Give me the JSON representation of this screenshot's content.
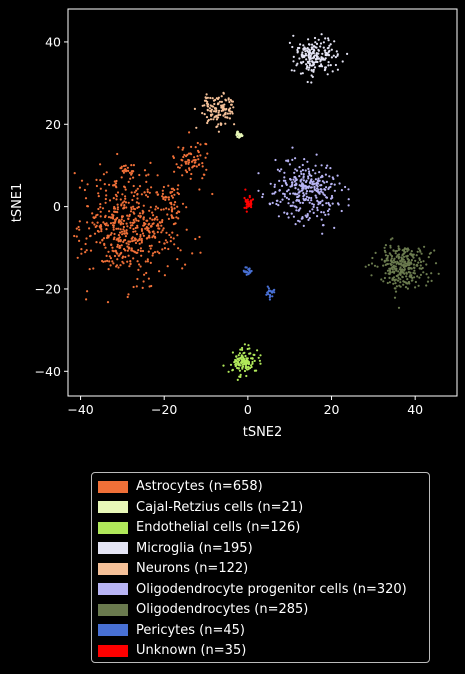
{
  "chart_data": {
    "type": "scatter",
    "title": "",
    "xlabel": "tSNE2",
    "ylabel": "tSNE1",
    "xlim": [
      -43,
      50
    ],
    "ylim": [
      -46,
      48
    ],
    "x_ticks": [
      -40,
      -20,
      0,
      20,
      40
    ],
    "y_ticks": [
      -40,
      -20,
      0,
      20,
      40
    ],
    "x_tick_labels": [
      "−40",
      "−20",
      "0",
      "20",
      "40"
    ],
    "y_tick_labels": [
      "−40",
      "−20",
      "0",
      "20",
      "40"
    ],
    "grid": false,
    "legend_position": "below",
    "series": [
      {
        "name": "Astrocytes (n=658)",
        "color": "#f07038",
        "n": 658,
        "clusters": [
          {
            "cx": -28,
            "cy": -5,
            "sx": 5.5,
            "sy": 6.5,
            "frac": 0.82
          },
          {
            "cx": -13,
            "cy": 11,
            "sx": 2.0,
            "sy": 2.5,
            "frac": 0.1
          },
          {
            "cx": -18,
            "cy": 2,
            "sx": 1.5,
            "sy": 2.0,
            "frac": 0.05
          },
          {
            "cx": -29,
            "cy": 9,
            "sx": 0.8,
            "sy": 0.8,
            "frac": 0.03
          }
        ]
      },
      {
        "name": "Cajal-Retzius cells (n=21)",
        "color": "#e8f8b8",
        "n": 21,
        "clusters": [
          {
            "cx": -2,
            "cy": 17.5,
            "sx": 0.5,
            "sy": 0.4,
            "frac": 1
          }
        ]
      },
      {
        "name": "Endothelial cells (n=126)",
        "color": "#b0e85a",
        "n": 126,
        "clusters": [
          {
            "cx": -1,
            "cy": -37.5,
            "sx": 1.8,
            "sy": 1.6,
            "frac": 1
          }
        ]
      },
      {
        "name": "Microglia (n=195)",
        "color": "#e4e4f4",
        "n": 195,
        "clusters": [
          {
            "cx": 16,
            "cy": 36.5,
            "sx": 2.3,
            "sy": 2.2,
            "frac": 1
          }
        ]
      },
      {
        "name": "Neurons (n=122)",
        "color": "#f4c098",
        "n": 122,
        "clusters": [
          {
            "cx": -7,
            "cy": 23.5,
            "sx": 2.0,
            "sy": 2.2,
            "frac": 1
          }
        ]
      },
      {
        "name": "Oligodendrocyte progenitor cells (n=320)",
        "color": "#b8b4f4",
        "n": 320,
        "clusters": [
          {
            "cx": 14,
            "cy": 4,
            "sx": 4.2,
            "sy": 3.5,
            "frac": 1
          }
        ]
      },
      {
        "name": "Oligodendrocytes (n=285)",
        "color": "#6a7a4e",
        "n": 285,
        "clusters": [
          {
            "cx": 37,
            "cy": -14.5,
            "sx": 3.2,
            "sy": 2.8,
            "frac": 1
          }
        ]
      },
      {
        "name": "Pericytes (n=45)",
        "color": "#4870d4",
        "n": 45,
        "clusters": [
          {
            "cx": 0,
            "cy": -15.5,
            "sx": 0.5,
            "sy": 0.4,
            "frac": 0.5
          },
          {
            "cx": 5.5,
            "cy": -21,
            "sx": 0.5,
            "sy": 0.6,
            "frac": 0.5
          }
        ]
      },
      {
        "name": "Unknown (n=35)",
        "color": "#ff0000",
        "n": 35,
        "clusters": [
          {
            "cx": 0,
            "cy": 1,
            "sx": 0.5,
            "sy": 1.0,
            "frac": 1
          }
        ]
      }
    ]
  }
}
